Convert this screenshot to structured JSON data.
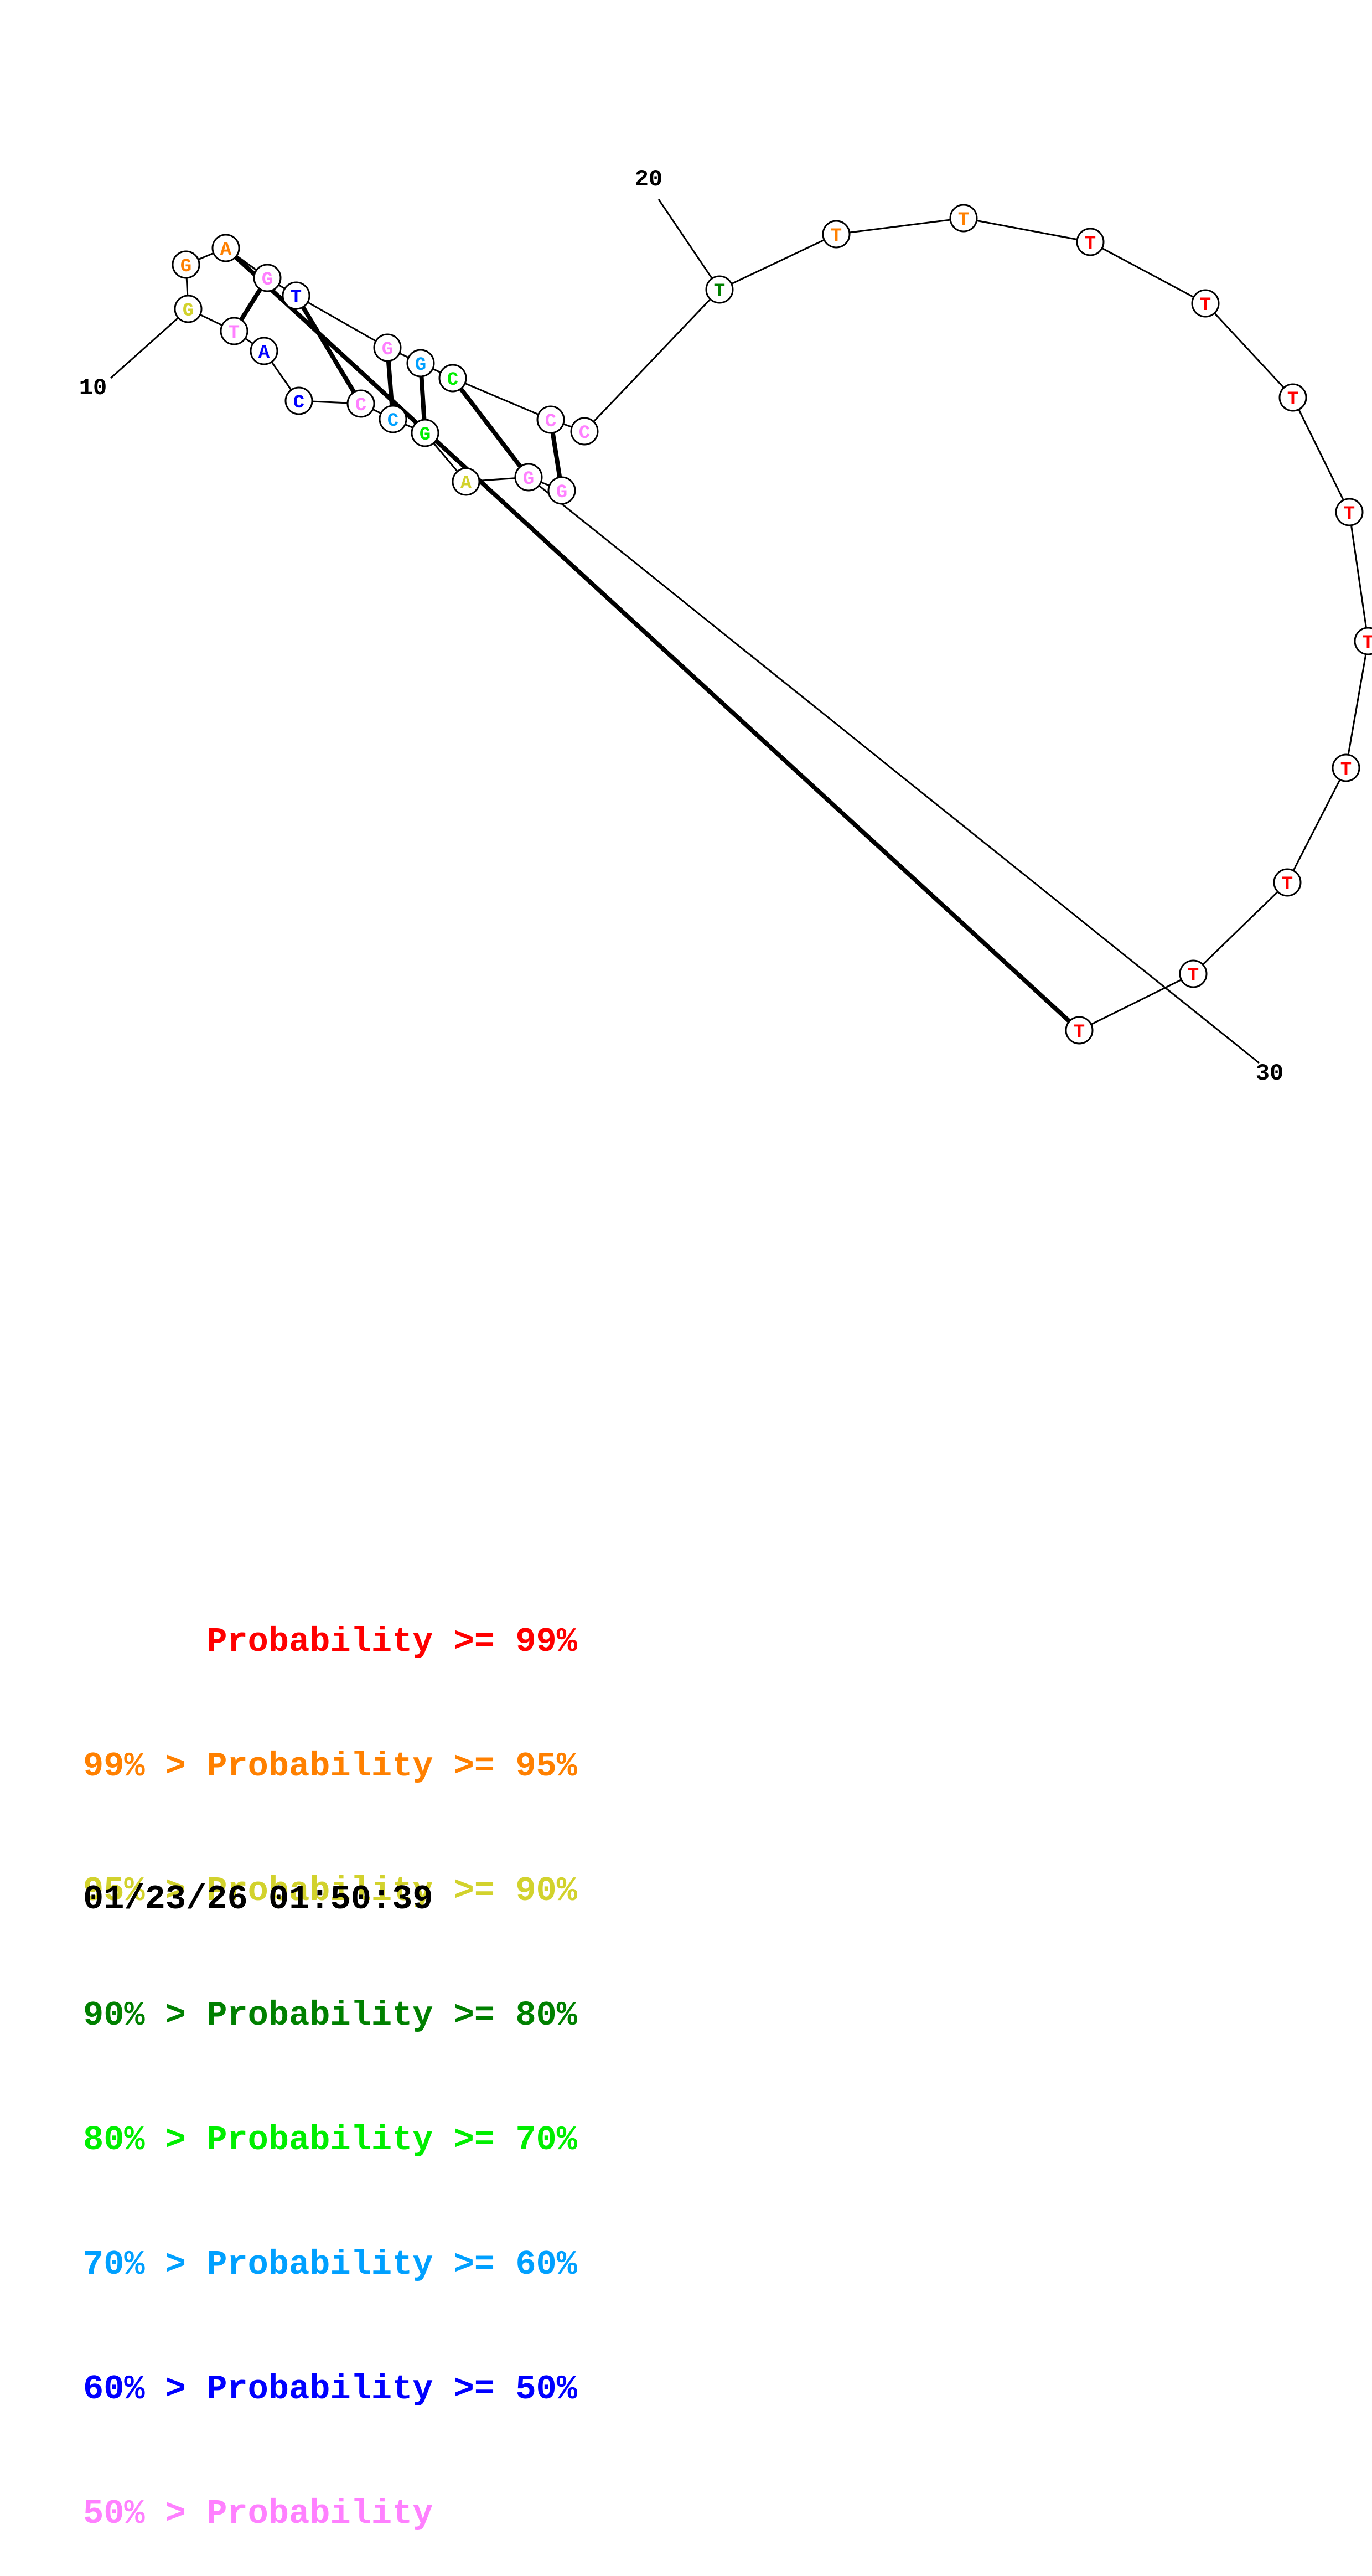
{
  "colors": {
    "p99": "#ff0000",
    "p95": "#ff8000",
    "p90": "#d2d22d",
    "p80": "#008000",
    "p70": "#00ee00",
    "p60": "#00a0ff",
    "p50": "#0000ff",
    "lt50": "#ff80ff"
  },
  "position_labels": [
    "10",
    "20",
    "30"
  ],
  "nucleotides": [
    {
      "base": "G",
      "level": "p90"
    },
    {
      "base": "G",
      "level": "p95"
    },
    {
      "base": "A",
      "level": "p95"
    },
    {
      "base": "G",
      "level": "lt50"
    },
    {
      "base": "T",
      "level": "p50"
    },
    {
      "base": "G",
      "level": "lt50"
    },
    {
      "base": "G",
      "level": "p60"
    },
    {
      "base": "C",
      "level": "p70"
    },
    {
      "base": "C",
      "level": "lt50"
    },
    {
      "base": "C",
      "level": "lt50"
    },
    {
      "base": "T",
      "level": "p80"
    },
    {
      "base": "T",
      "level": "p95"
    },
    {
      "base": "T",
      "level": "p95"
    },
    {
      "base": "T",
      "level": "p99"
    },
    {
      "base": "T",
      "level": "p99"
    },
    {
      "base": "T",
      "level": "p99"
    },
    {
      "base": "T",
      "level": "p99"
    },
    {
      "base": "T",
      "level": "p99"
    },
    {
      "base": "T",
      "level": "p99"
    },
    {
      "base": "T",
      "level": "p99"
    },
    {
      "base": "T",
      "level": "p99"
    },
    {
      "base": "T",
      "level": "p99"
    },
    {
      "base": "T",
      "level": "lt50"
    },
    {
      "base": "A",
      "level": "p50"
    },
    {
      "base": "C",
      "level": "p50"
    },
    {
      "base": "C",
      "level": "lt50"
    },
    {
      "base": "C",
      "level": "p60"
    },
    {
      "base": "G",
      "level": "p70"
    },
    {
      "base": "A",
      "level": "p90"
    },
    {
      "base": "G",
      "level": "lt50"
    },
    {
      "base": "G",
      "level": "lt50"
    }
  ],
  "legend": [
    {
      "text": "      Probability >= 99%",
      "level": "p99"
    },
    {
      "text": "99% > Probability >= 95%",
      "level": "p95"
    },
    {
      "text": "95% > Probability >= 90%",
      "level": "p90"
    },
    {
      "text": "90% > Probability >= 80%",
      "level": "p80"
    },
    {
      "text": "80% > Probability >= 70%",
      "level": "p70"
    },
    {
      "text": "70% > Probability >= 60%",
      "level": "p60"
    },
    {
      "text": "60% > Probability >= 50%",
      "level": "p50"
    },
    {
      "text": "50% > Probability",
      "level": "lt50"
    }
  ],
  "timestamp": "01/23/26 01:50:39"
}
